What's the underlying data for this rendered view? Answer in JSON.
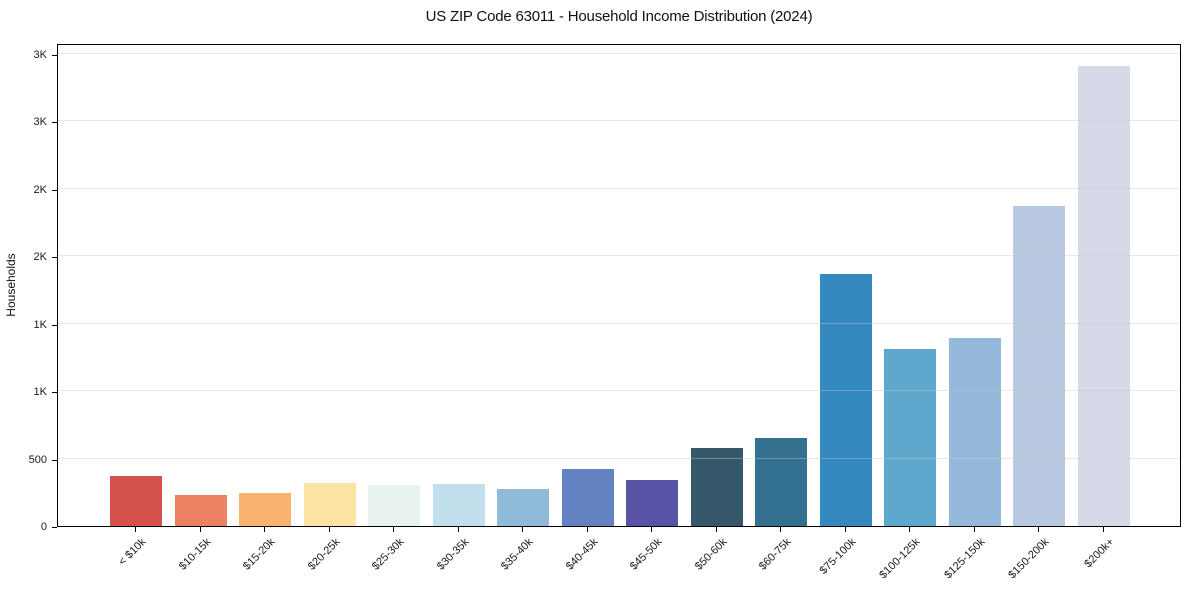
{
  "title": "US ZIP Code 63011 - Household Income Distribution (2024)",
  "chart_data": {
    "type": "bar",
    "title": "US ZIP Code 63011 - Household Income Distribution (2024)",
    "xlabel": "",
    "ylabel": "Households",
    "ylim": [
      0,
      3580
    ],
    "grid": "horizontal-light",
    "legend": "none",
    "categories": [
      "< $10k",
      "$10-15k",
      "$15-20k",
      "$20-25k",
      "$25-30k",
      "$30-35k",
      "$35-40k",
      "$40-45k",
      "$45-50k",
      "$50-60k",
      "$60-75k",
      "$75-100k",
      "$100-125k",
      "$125-150k",
      "$150-200k",
      "$200k+"
    ],
    "values": [
      368,
      230,
      248,
      317,
      304,
      309,
      275,
      421,
      341,
      577,
      653,
      1870,
      1310,
      1390,
      2370,
      3410
    ],
    "bar_colors": [
      "#d5524c",
      "#ee8164",
      "#fab36e",
      "#fde3a1",
      "#e8f2f1",
      "#c1dfec",
      "#8fbada",
      "#6282c1",
      "#5954a5",
      "#35596b",
      "#347190",
      "#3489bf",
      "#5ea7cd",
      "#93b8da",
      "#b9c8e1",
      "#d8d9e8"
    ],
    "yticks": [
      {
        "value": 0,
        "label": "0"
      },
      {
        "value": 500,
        "label": "500"
      },
      {
        "value": 1000,
        "label": "1K"
      },
      {
        "value": 1500,
        "label": "1K"
      },
      {
        "value": 2000,
        "label": "2K"
      },
      {
        "value": 2500,
        "label": "2K"
      },
      {
        "value": 3000,
        "label": "3K"
      },
      {
        "value": 3500,
        "label": "3K"
      }
    ]
  }
}
